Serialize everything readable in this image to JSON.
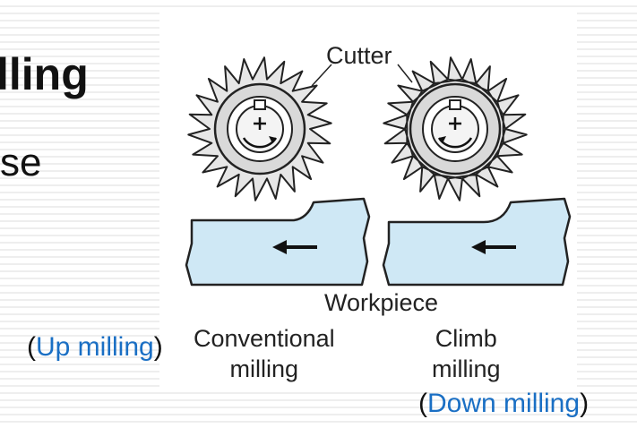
{
  "slide": {
    "title": "lling",
    "subtitle": "se"
  },
  "diagram": {
    "cutter_label": "Cutter",
    "workpiece_label": "Workpiece",
    "conventional": {
      "line1": "Conventional",
      "line2": "milling",
      "alt_open": "(",
      "alt_text": "Up milling",
      "alt_close": ")"
    },
    "climb": {
      "line1": "Climb",
      "line2": "milling",
      "alt_open": "(",
      "alt_text": "Down milling",
      "alt_close": ")"
    },
    "colors": {
      "workpiece_fill": "#cfe8f5",
      "cutter_fill": "#e6e6e6",
      "outline": "#222222",
      "accent_blue": "#1a6fc4"
    }
  }
}
